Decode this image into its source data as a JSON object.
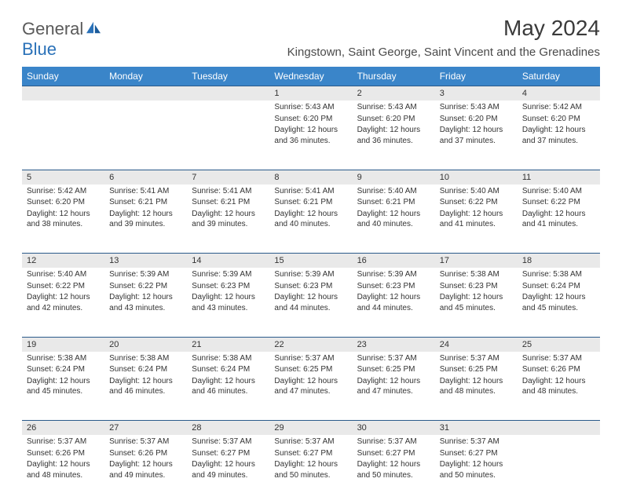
{
  "logo": {
    "general": "General",
    "blue": "Blue"
  },
  "title": "May 2024",
  "location": "Kingstown, Saint George, Saint Vincent and the Grenadines",
  "dayHeaders": [
    "Sunday",
    "Monday",
    "Tuesday",
    "Wednesday",
    "Thursday",
    "Friday",
    "Saturday"
  ],
  "colors": {
    "headerBg": "#3a85c9",
    "numberBg": "#e9e9e9",
    "separator": "#2a5a8a",
    "logoBlue": "#2a71b8"
  },
  "weeks": [
    [
      {
        "num": "",
        "sunrise": "",
        "sunset": "",
        "daylight": ""
      },
      {
        "num": "",
        "sunrise": "",
        "sunset": "",
        "daylight": ""
      },
      {
        "num": "",
        "sunrise": "",
        "sunset": "",
        "daylight": ""
      },
      {
        "num": "1",
        "sunrise": "Sunrise: 5:43 AM",
        "sunset": "Sunset: 6:20 PM",
        "daylight": "Daylight: 12 hours and 36 minutes."
      },
      {
        "num": "2",
        "sunrise": "Sunrise: 5:43 AM",
        "sunset": "Sunset: 6:20 PM",
        "daylight": "Daylight: 12 hours and 36 minutes."
      },
      {
        "num": "3",
        "sunrise": "Sunrise: 5:43 AM",
        "sunset": "Sunset: 6:20 PM",
        "daylight": "Daylight: 12 hours and 37 minutes."
      },
      {
        "num": "4",
        "sunrise": "Sunrise: 5:42 AM",
        "sunset": "Sunset: 6:20 PM",
        "daylight": "Daylight: 12 hours and 37 minutes."
      }
    ],
    [
      {
        "num": "5",
        "sunrise": "Sunrise: 5:42 AM",
        "sunset": "Sunset: 6:20 PM",
        "daylight": "Daylight: 12 hours and 38 minutes."
      },
      {
        "num": "6",
        "sunrise": "Sunrise: 5:41 AM",
        "sunset": "Sunset: 6:21 PM",
        "daylight": "Daylight: 12 hours and 39 minutes."
      },
      {
        "num": "7",
        "sunrise": "Sunrise: 5:41 AM",
        "sunset": "Sunset: 6:21 PM",
        "daylight": "Daylight: 12 hours and 39 minutes."
      },
      {
        "num": "8",
        "sunrise": "Sunrise: 5:41 AM",
        "sunset": "Sunset: 6:21 PM",
        "daylight": "Daylight: 12 hours and 40 minutes."
      },
      {
        "num": "9",
        "sunrise": "Sunrise: 5:40 AM",
        "sunset": "Sunset: 6:21 PM",
        "daylight": "Daylight: 12 hours and 40 minutes."
      },
      {
        "num": "10",
        "sunrise": "Sunrise: 5:40 AM",
        "sunset": "Sunset: 6:22 PM",
        "daylight": "Daylight: 12 hours and 41 minutes."
      },
      {
        "num": "11",
        "sunrise": "Sunrise: 5:40 AM",
        "sunset": "Sunset: 6:22 PM",
        "daylight": "Daylight: 12 hours and 41 minutes."
      }
    ],
    [
      {
        "num": "12",
        "sunrise": "Sunrise: 5:40 AM",
        "sunset": "Sunset: 6:22 PM",
        "daylight": "Daylight: 12 hours and 42 minutes."
      },
      {
        "num": "13",
        "sunrise": "Sunrise: 5:39 AM",
        "sunset": "Sunset: 6:22 PM",
        "daylight": "Daylight: 12 hours and 43 minutes."
      },
      {
        "num": "14",
        "sunrise": "Sunrise: 5:39 AM",
        "sunset": "Sunset: 6:23 PM",
        "daylight": "Daylight: 12 hours and 43 minutes."
      },
      {
        "num": "15",
        "sunrise": "Sunrise: 5:39 AM",
        "sunset": "Sunset: 6:23 PM",
        "daylight": "Daylight: 12 hours and 44 minutes."
      },
      {
        "num": "16",
        "sunrise": "Sunrise: 5:39 AM",
        "sunset": "Sunset: 6:23 PM",
        "daylight": "Daylight: 12 hours and 44 minutes."
      },
      {
        "num": "17",
        "sunrise": "Sunrise: 5:38 AM",
        "sunset": "Sunset: 6:23 PM",
        "daylight": "Daylight: 12 hours and 45 minutes."
      },
      {
        "num": "18",
        "sunrise": "Sunrise: 5:38 AM",
        "sunset": "Sunset: 6:24 PM",
        "daylight": "Daylight: 12 hours and 45 minutes."
      }
    ],
    [
      {
        "num": "19",
        "sunrise": "Sunrise: 5:38 AM",
        "sunset": "Sunset: 6:24 PM",
        "daylight": "Daylight: 12 hours and 45 minutes."
      },
      {
        "num": "20",
        "sunrise": "Sunrise: 5:38 AM",
        "sunset": "Sunset: 6:24 PM",
        "daylight": "Daylight: 12 hours and 46 minutes."
      },
      {
        "num": "21",
        "sunrise": "Sunrise: 5:38 AM",
        "sunset": "Sunset: 6:24 PM",
        "daylight": "Daylight: 12 hours and 46 minutes."
      },
      {
        "num": "22",
        "sunrise": "Sunrise: 5:37 AM",
        "sunset": "Sunset: 6:25 PM",
        "daylight": "Daylight: 12 hours and 47 minutes."
      },
      {
        "num": "23",
        "sunrise": "Sunrise: 5:37 AM",
        "sunset": "Sunset: 6:25 PM",
        "daylight": "Daylight: 12 hours and 47 minutes."
      },
      {
        "num": "24",
        "sunrise": "Sunrise: 5:37 AM",
        "sunset": "Sunset: 6:25 PM",
        "daylight": "Daylight: 12 hours and 48 minutes."
      },
      {
        "num": "25",
        "sunrise": "Sunrise: 5:37 AM",
        "sunset": "Sunset: 6:26 PM",
        "daylight": "Daylight: 12 hours and 48 minutes."
      }
    ],
    [
      {
        "num": "26",
        "sunrise": "Sunrise: 5:37 AM",
        "sunset": "Sunset: 6:26 PM",
        "daylight": "Daylight: 12 hours and 48 minutes."
      },
      {
        "num": "27",
        "sunrise": "Sunrise: 5:37 AM",
        "sunset": "Sunset: 6:26 PM",
        "daylight": "Daylight: 12 hours and 49 minutes."
      },
      {
        "num": "28",
        "sunrise": "Sunrise: 5:37 AM",
        "sunset": "Sunset: 6:27 PM",
        "daylight": "Daylight: 12 hours and 49 minutes."
      },
      {
        "num": "29",
        "sunrise": "Sunrise: 5:37 AM",
        "sunset": "Sunset: 6:27 PM",
        "daylight": "Daylight: 12 hours and 50 minutes."
      },
      {
        "num": "30",
        "sunrise": "Sunrise: 5:37 AM",
        "sunset": "Sunset: 6:27 PM",
        "daylight": "Daylight: 12 hours and 50 minutes."
      },
      {
        "num": "31",
        "sunrise": "Sunrise: 5:37 AM",
        "sunset": "Sunset: 6:27 PM",
        "daylight": "Daylight: 12 hours and 50 minutes."
      },
      {
        "num": "",
        "sunrise": "",
        "sunset": "",
        "daylight": ""
      }
    ]
  ]
}
